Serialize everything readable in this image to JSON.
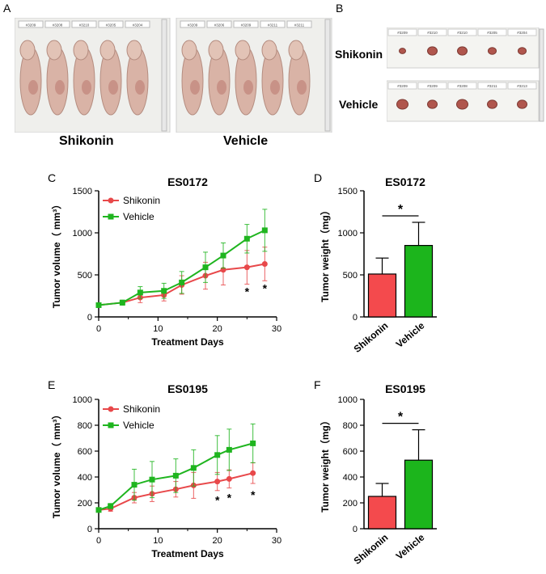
{
  "panels": {
    "A": {
      "letter": "A",
      "group_left": "Shikonin",
      "group_right": "Vehicle",
      "tags_left": [
        "#3209",
        "#3208",
        "#3210",
        "#3205",
        "#3204"
      ],
      "tags_right": [
        "#3209",
        "#3206",
        "#3209",
        "#3211",
        "#3211"
      ]
    },
    "B": {
      "letter": "B",
      "row_top": "Shikonin",
      "row_bottom": "Vehicle",
      "tags_top": [
        "#3209",
        "#3210",
        "#3210",
        "#3205",
        "#3204"
      ],
      "tags_bottom": [
        "#3209",
        "#3209",
        "#3208",
        "#3211",
        "#3213"
      ]
    },
    "C": {
      "letter": "C"
    },
    "D": {
      "letter": "D"
    },
    "E": {
      "letter": "E"
    },
    "F": {
      "letter": "F"
    }
  },
  "colors": {
    "shikonin": "#e8484a",
    "vehicle": "#1fb51f"
  },
  "chart_data": [
    {
      "id": "C",
      "type": "line",
      "title": "ES0172",
      "xlabel": "Treatment Days",
      "ylabel": "Tumor volume（ mm³）",
      "xlim": [
        0,
        30
      ],
      "ylim": [
        0,
        1500
      ],
      "xticks": [
        0,
        10,
        20,
        30
      ],
      "yticks": [
        0,
        500,
        1000,
        1500
      ],
      "legend": [
        "Shikonin",
        "Vehicle"
      ],
      "series": [
        {
          "name": "Shikonin",
          "color": "#e8484a",
          "marker": "circle",
          "x": [
            0,
            4,
            7,
            11,
            14,
            18,
            21,
            25,
            28
          ],
          "y": [
            140,
            170,
            230,
            260,
            380,
            490,
            560,
            590,
            630
          ],
          "err": [
            15,
            25,
            60,
            70,
            110,
            160,
            180,
            200,
            200
          ]
        },
        {
          "name": "Vehicle",
          "color": "#1fb51f",
          "marker": "square",
          "x": [
            0,
            4,
            7,
            11,
            14,
            18,
            21,
            25,
            28
          ],
          "y": [
            140,
            170,
            290,
            310,
            410,
            590,
            730,
            930,
            1030
          ],
          "err": [
            15,
            30,
            70,
            90,
            130,
            180,
            150,
            170,
            250
          ]
        }
      ],
      "annotations": [
        {
          "x": 25,
          "y": 330,
          "text": "*"
        },
        {
          "x": 28,
          "y": 370,
          "text": "*"
        }
      ]
    },
    {
      "id": "D",
      "type": "bar",
      "title": "ES0172",
      "ylabel": "Tumor weight（mg）",
      "ylim": [
        0,
        1500
      ],
      "yticks": [
        0,
        500,
        1000,
        1500
      ],
      "categories": [
        "Shikonin",
        "Vehicle"
      ],
      "values": [
        510,
        850
      ],
      "err": [
        190,
        275
      ],
      "colors": [
        "#f44a4d",
        "#1cb51c"
      ],
      "significance": "*"
    },
    {
      "id": "E",
      "type": "line",
      "title": "ES0195",
      "xlabel": "Treatment Days",
      "ylabel": "Tumor volume（ mm³）",
      "xlim": [
        0,
        30
      ],
      "ylim": [
        0,
        1000
      ],
      "xticks": [
        0,
        10,
        20,
        30
      ],
      "yticks": [
        0,
        200,
        400,
        600,
        800,
        1000
      ],
      "legend": [
        "Shikonin",
        "Vehicle"
      ],
      "series": [
        {
          "name": "Shikonin",
          "color": "#e8484a",
          "marker": "circle",
          "x": [
            0,
            2,
            6,
            9,
            13,
            16,
            20,
            22,
            26
          ],
          "y": [
            145,
            155,
            240,
            270,
            305,
            335,
            365,
            385,
            430
          ],
          "err": [
            15,
            20,
            40,
            60,
            60,
            100,
            70,
            70,
            80
          ]
        },
        {
          "name": "Vehicle",
          "color": "#1fb51f",
          "marker": "square",
          "x": [
            0,
            2,
            6,
            9,
            13,
            16,
            20,
            22,
            26
          ],
          "y": [
            145,
            175,
            340,
            380,
            410,
            470,
            570,
            610,
            660
          ],
          "err": [
            15,
            20,
            120,
            140,
            130,
            140,
            150,
            160,
            150
          ]
        }
      ],
      "annotations": [
        {
          "x": 20,
          "y": 240,
          "text": "*"
        },
        {
          "x": 22,
          "y": 260,
          "text": "*"
        },
        {
          "x": 26,
          "y": 280,
          "text": "*"
        }
      ]
    },
    {
      "id": "F",
      "type": "bar",
      "title": "ES0195",
      "ylabel": "Tumor weight（mg）",
      "ylim": [
        0,
        1000
      ],
      "yticks": [
        0,
        200,
        400,
        600,
        800,
        1000
      ],
      "categories": [
        "Shikonin",
        "Vehicle"
      ],
      "values": [
        250,
        530
      ],
      "err": [
        100,
        235
      ],
      "colors": [
        "#f44a4d",
        "#1cb51c"
      ],
      "significance": "*"
    }
  ]
}
